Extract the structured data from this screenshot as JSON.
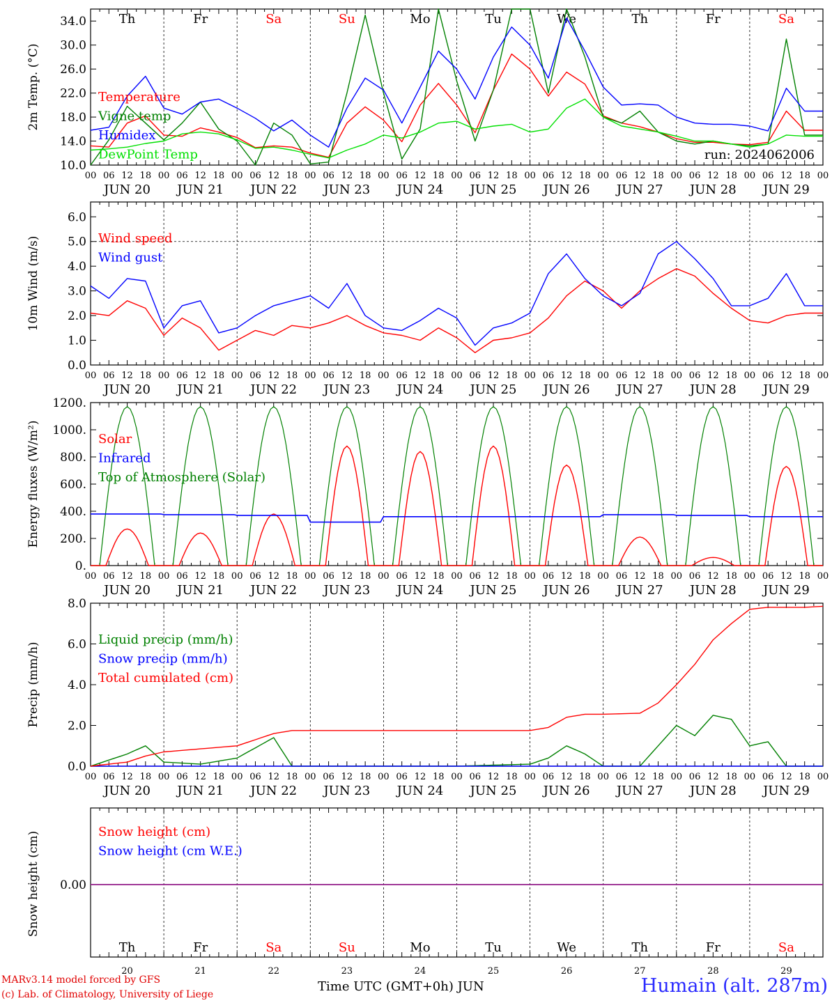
{
  "chart_data": [
    {
      "type": "line",
      "ylabel": "2m Temp. (°C)",
      "ylim": [
        10,
        36
      ],
      "yticks": [
        "10.0",
        "14.0",
        "18.0",
        "22.0",
        "26.0",
        "30.0",
        "34.0"
      ],
      "run_label": "run: 2024062006",
      "x_hours": [
        0,
        6,
        12,
        18,
        24,
        30,
        36,
        42,
        48,
        54,
        60,
        66,
        72,
        78,
        84,
        90,
        96,
        102,
        108,
        114,
        120,
        126,
        132,
        138,
        144,
        150,
        156,
        162,
        168,
        174,
        180,
        186,
        192,
        198,
        204,
        210,
        216,
        222,
        228,
        234
      ],
      "series": [
        {
          "name": "Temperature",
          "color": "#ff0000",
          "values": [
            13.2,
            13.0,
            17.0,
            18.2,
            15.0,
            14.8,
            16.2,
            15.5,
            14.6,
            12.9,
            13.2,
            13.0,
            12.0,
            11.3,
            17.0,
            19.7,
            17.5,
            13.9,
            20.0,
            23.6,
            20.0,
            15.4,
            22.5,
            28.5,
            26.0,
            21.5,
            25.5,
            23.5,
            18.2,
            17.0,
            16.4,
            15.5,
            14.4,
            13.8,
            13.8,
            13.5,
            13.4,
            13.8,
            19.0,
            15.8
          ]
        },
        {
          "name": "Vigne temp",
          "color": "#008000",
          "values": [
            10.0,
            14.2,
            19.8,
            17.0,
            14.2,
            17.0,
            20.5,
            16.0,
            14.0,
            10.0,
            17.0,
            15.0,
            10.2,
            10.5,
            22.0,
            35.0,
            22.0,
            11.0,
            16.0,
            36.0,
            24.0,
            14.0,
            22.5,
            36.0,
            36.0,
            22.0,
            36.0,
            28.0,
            18.0,
            17.0,
            19.0,
            15.5,
            14.0,
            13.5,
            14.0,
            13.5,
            13.2,
            13.5,
            31.0,
            15.0
          ]
        },
        {
          "name": "Humidex",
          "color": "#0000ff",
          "values": [
            15.8,
            16.3,
            21.5,
            24.8,
            19.5,
            18.5,
            20.5,
            21.0,
            19.5,
            17.8,
            15.7,
            17.5,
            15.0,
            13.0,
            19.5,
            24.5,
            22.5,
            17.0,
            23.0,
            29.0,
            26.0,
            21.0,
            28.0,
            33.0,
            30.0,
            24.5,
            34.5,
            29.0,
            23.0,
            20.0,
            20.2,
            20.0,
            18.0,
            17.0,
            16.8,
            16.8,
            16.5,
            15.7,
            22.8,
            19.0
          ]
        },
        {
          "name": "DewPoint Temp",
          "color": "#00e000",
          "values": [
            12.5,
            12.7,
            13.0,
            13.6,
            14.0,
            15.2,
            15.5,
            15.2,
            14.2,
            12.8,
            13.0,
            12.5,
            11.8,
            11.2,
            12.5,
            13.5,
            15.0,
            14.5,
            15.5,
            17.0,
            17.3,
            16.0,
            16.5,
            16.8,
            15.5,
            16.0,
            19.5,
            21.0,
            18.0,
            16.5,
            16.0,
            15.5,
            14.8,
            14.0,
            14.0,
            13.5,
            13.0,
            13.5,
            15.0,
            14.8
          ]
        }
      ]
    },
    {
      "type": "line",
      "ylabel": "10m Wind (m/s)",
      "ylim": [
        0,
        6.6
      ],
      "yticks": [
        "0.0",
        "1.0",
        "2.0",
        "3.0",
        "4.0",
        "5.0",
        "6.0"
      ],
      "reference_line": 5.0,
      "x_hours": [
        0,
        6,
        12,
        18,
        24,
        30,
        36,
        42,
        48,
        54,
        60,
        66,
        72,
        78,
        84,
        90,
        96,
        102,
        108,
        114,
        120,
        126,
        132,
        138,
        144,
        150,
        156,
        162,
        168,
        174,
        180,
        186,
        192,
        198,
        204,
        210,
        216,
        222,
        228,
        234
      ],
      "series": [
        {
          "name": "Wind speed",
          "color": "#ff0000",
          "values": [
            2.1,
            2.0,
            2.6,
            2.3,
            1.2,
            1.9,
            1.5,
            0.6,
            1.0,
            1.4,
            1.2,
            1.6,
            1.5,
            1.7,
            2.0,
            1.6,
            1.3,
            1.2,
            1.0,
            1.5,
            1.1,
            0.5,
            1.0,
            1.1,
            1.3,
            1.9,
            2.8,
            3.4,
            3.0,
            2.3,
            3.0,
            3.5,
            3.9,
            3.6,
            2.9,
            2.3,
            1.8,
            1.7,
            2.0,
            2.1
          ]
        },
        {
          "name": "Wind gust",
          "color": "#0000ff",
          "values": [
            3.2,
            2.7,
            3.5,
            3.4,
            1.5,
            2.4,
            2.6,
            1.3,
            1.5,
            2.0,
            2.4,
            2.6,
            2.8,
            2.3,
            3.3,
            2.0,
            1.5,
            1.4,
            1.8,
            2.3,
            1.9,
            0.8,
            1.5,
            1.7,
            2.1,
            3.7,
            4.5,
            3.5,
            2.8,
            2.4,
            2.9,
            4.5,
            5.0,
            4.3,
            3.5,
            2.4,
            2.4,
            2.7,
            3.7,
            2.4
          ]
        }
      ]
    },
    {
      "type": "line",
      "ylabel": "Energy fluxes (W/m²)",
      "ylim": [
        0,
        1200
      ],
      "yticks": [
        "0.",
        "200.",
        "400.",
        "600.",
        "800.",
        "1000.",
        "1200."
      ],
      "days": [
        "20",
        "21",
        "22",
        "23",
        "24",
        "25",
        "26",
        "27",
        "28",
        "29"
      ],
      "series": [
        {
          "name": "Solar",
          "color": "#ff0000",
          "daily_peak": [
            270,
            240,
            380,
            880,
            840,
            880,
            740,
            210,
            60,
            730
          ]
        },
        {
          "name": "Infrared",
          "color": "#0000ff",
          "daily_mean": [
            380,
            375,
            370,
            320,
            360,
            360,
            360,
            375,
            370,
            360
          ]
        },
        {
          "name": "Top of Atmosphere (Solar)",
          "color": "#008000",
          "daily_peak": [
            1170,
            1170,
            1170,
            1170,
            1170,
            1170,
            1170,
            1170,
            1170,
            1170
          ]
        }
      ]
    },
    {
      "type": "line",
      "ylabel": "Precip (mm/h)",
      "ylim": [
        0,
        8
      ],
      "yticks": [
        "0.0",
        "2.0",
        "4.0",
        "6.0",
        "8.0"
      ],
      "x_hours": [
        0,
        12,
        18,
        24,
        36,
        48,
        60,
        66,
        72,
        96,
        120,
        144,
        150,
        156,
        162,
        168,
        180,
        186,
        192,
        198,
        204,
        210,
        216,
        222,
        228,
        234,
        240
      ],
      "series": [
        {
          "name": "Liquid precip (mm/h)",
          "color": "#008000",
          "values": [
            0.0,
            0.6,
            1.0,
            0.2,
            0.1,
            0.4,
            1.4,
            0.0,
            0.0,
            0.0,
            0.0,
            0.1,
            0.4,
            1.0,
            0.6,
            0.0,
            0.0,
            1.0,
            2.0,
            1.5,
            2.5,
            2.3,
            1.0,
            1.2,
            0.0,
            0.0,
            0.0
          ]
        },
        {
          "name": "Snow precip (mm/h)",
          "color": "#0000ff",
          "values": [
            0,
            0,
            0,
            0,
            0,
            0,
            0,
            0,
            0,
            0,
            0,
            0,
            0,
            0,
            0,
            0,
            0,
            0,
            0,
            0,
            0,
            0,
            0,
            0,
            0,
            0,
            0
          ]
        },
        {
          "name": "Total cumulated (cm)",
          "color": "#ff0000",
          "values": [
            0.0,
            0.2,
            0.5,
            0.7,
            0.85,
            1.0,
            1.6,
            1.75,
            1.75,
            1.75,
            1.75,
            1.75,
            1.9,
            2.4,
            2.55,
            2.55,
            2.6,
            3.1,
            4.0,
            5.0,
            6.2,
            7.0,
            7.7,
            7.8,
            7.8,
            7.8,
            7.85
          ]
        }
      ]
    },
    {
      "type": "line",
      "ylabel": "Snow height (cm)",
      "ytick": "0.00",
      "series": [
        {
          "name": "Snow height (cm)",
          "color": "#ff0000",
          "values": [
            0,
            0
          ]
        },
        {
          "name": "Snow height (cm W.E.)",
          "color": "#0000ff",
          "values": [
            0,
            0
          ]
        }
      ]
    }
  ],
  "axis": {
    "hour_ticks": [
      "00",
      "06",
      "12",
      "18"
    ],
    "end_tick": "00",
    "day_dates": [
      "JUN 20",
      "JUN 21",
      "JUN 22",
      "JUN 23",
      "JUN 24",
      "JUN 25",
      "JUN 26",
      "JUN 27",
      "JUN 28",
      "JUN 29"
    ],
    "weekdays": [
      "Th",
      "Fr",
      "Sa",
      "Su",
      "Mo",
      "Tu",
      "We",
      "Th",
      "Fr",
      "Sa"
    ],
    "weekday_colors": [
      "#000000",
      "#000000",
      "#ff0000",
      "#ff0000",
      "#000000",
      "#000000",
      "#000000",
      "#000000",
      "#000000",
      "#ff0000"
    ],
    "day_numbers": [
      "20",
      "21",
      "22",
      "23",
      "24",
      "25",
      "26",
      "27",
      "28",
      "29"
    ]
  },
  "footer": {
    "credit_line1": "MARv3.14 model forced by GFS",
    "credit_line2": "(c) Lab. of Climatology, University of Liege",
    "time_label": "Time UTC (GMT+0h) JUN",
    "station_title": "Humain (alt. 287m)"
  }
}
